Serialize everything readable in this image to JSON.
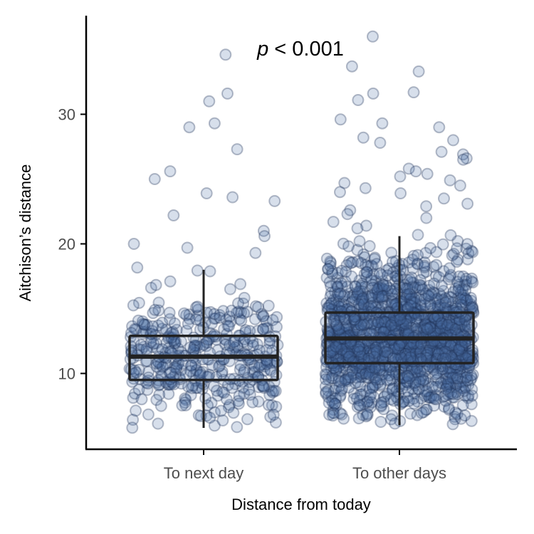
{
  "chart_data": {
    "type": "boxplot-jitter",
    "xlabel": "Distance from today",
    "ylabel": "Aitchison’s distance",
    "categories": [
      "To next day",
      "To other days"
    ],
    "yticks": [
      10,
      20,
      30
    ],
    "ylim": [
      4.4,
      37.6
    ],
    "annotation": {
      "italic": "p",
      "rest": " < 0.001"
    },
    "colors": {
      "point_fill": "#4a6fa5",
      "point_stroke": "#22355a",
      "box": "#222222",
      "axis": "#000000",
      "tick_label": "#4d4d4d"
    },
    "series": [
      {
        "category": "To next day",
        "box": {
          "whisker_low": 5.8,
          "q1": 9.5,
          "median": 11.3,
          "q3": 12.9,
          "whisker_high": 18.0
        },
        "n_points": 420,
        "outliers": [
          34.6,
          31.6,
          31.0,
          29.3,
          29.0,
          27.3,
          25.6,
          25.0,
          23.9,
          23.6,
          23.3,
          22.2,
          21.0,
          20.6,
          19.3,
          19.7,
          20.0
        ]
      },
      {
        "category": "To other days",
        "box": {
          "whisker_low": 6.0,
          "q1": 10.8,
          "median": 12.7,
          "q3": 14.7,
          "whisker_high": 20.6
        },
        "n_points": 1600,
        "outliers": [
          36.0,
          33.7,
          33.3,
          31.7,
          31.6,
          31.1,
          29.6,
          29.0,
          29.3,
          28.2,
          28.0,
          27.8,
          27.1,
          26.9,
          26.6,
          26.5,
          25.8,
          25.6,
          25.4,
          25.2,
          24.9,
          24.7,
          24.5,
          24.3,
          24.0,
          23.9,
          23.5,
          23.1,
          22.9,
          22.6,
          22.3,
          22.0,
          21.7,
          21.4,
          21.2
        ]
      }
    ]
  }
}
